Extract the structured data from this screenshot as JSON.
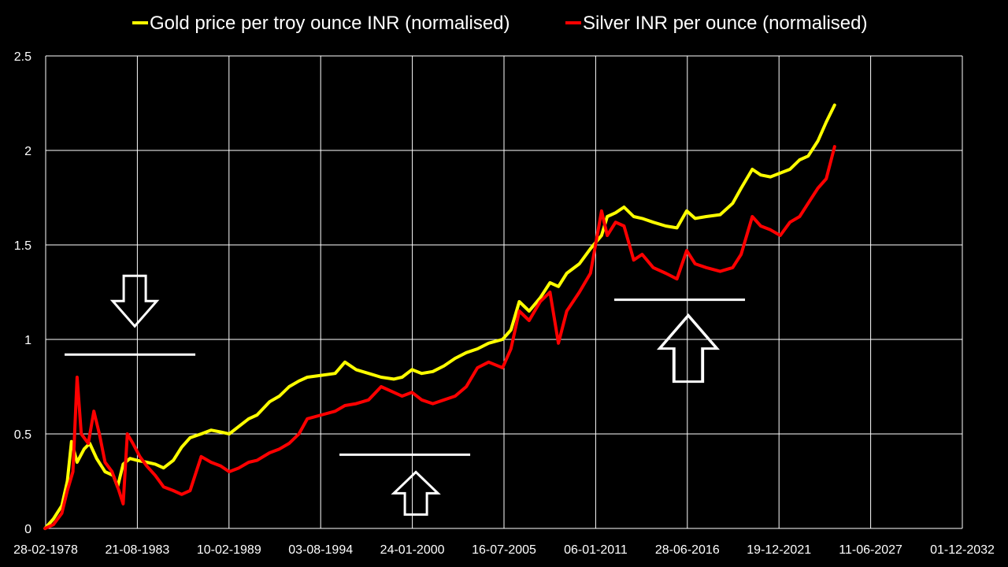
{
  "chart_data": {
    "type": "line",
    "title": "",
    "xlabel": "",
    "ylabel": "",
    "background_color": "#000000",
    "grid": true,
    "grid_color": "#ffffff",
    "legend_position": "top",
    "x_ticks": [
      "28-02-1978",
      "21-08-1983",
      "10-02-1989",
      "03-08-1994",
      "24-01-2000",
      "16-07-2005",
      "06-01-2011",
      "28-06-2016",
      "19-12-2021",
      "11-06-2027",
      "01-12-2032"
    ],
    "y_ticks": [
      "0",
      "0.5",
      "1",
      "1.5",
      "2",
      "2.5"
    ],
    "ylim": [
      0,
      2.5
    ],
    "xlim": [
      "1978-02-28",
      "2032-12-01"
    ],
    "series": [
      {
        "name": "Gold price per troy ounce INR (normalised)",
        "color": "#ffff00",
        "points": [
          [
            "1978-02",
            0.0
          ],
          [
            "1978-08",
            0.05
          ],
          [
            "1979-02",
            0.12
          ],
          [
            "1979-06",
            0.25
          ],
          [
            "1979-09",
            0.46
          ],
          [
            "1980-01",
            0.35
          ],
          [
            "1980-06",
            0.42
          ],
          [
            "1980-10",
            0.45
          ],
          [
            "1981-03",
            0.37
          ],
          [
            "1981-09",
            0.3
          ],
          [
            "1982-03",
            0.28
          ],
          [
            "1982-06",
            0.22
          ],
          [
            "1982-10",
            0.34
          ],
          [
            "1983-03",
            0.37
          ],
          [
            "1983-08",
            0.36
          ],
          [
            "1984-03",
            0.35
          ],
          [
            "1984-09",
            0.34
          ],
          [
            "1985-03",
            0.32
          ],
          [
            "1985-10",
            0.36
          ],
          [
            "1986-04",
            0.43
          ],
          [
            "1986-10",
            0.48
          ],
          [
            "1987-06",
            0.5
          ],
          [
            "1988-01",
            0.52
          ],
          [
            "1988-08",
            0.51
          ],
          [
            "1989-02",
            0.5
          ],
          [
            "1989-09",
            0.54
          ],
          [
            "1990-04",
            0.58
          ],
          [
            "1990-10",
            0.6
          ],
          [
            "1991-07",
            0.67
          ],
          [
            "1992-02",
            0.7
          ],
          [
            "1992-09",
            0.75
          ],
          [
            "1993-04",
            0.78
          ],
          [
            "1993-10",
            0.8
          ],
          [
            "1994-08",
            0.81
          ],
          [
            "1995-06",
            0.82
          ],
          [
            "1996-01",
            0.88
          ],
          [
            "1996-09",
            0.84
          ],
          [
            "1997-06",
            0.82
          ],
          [
            "1998-03",
            0.8
          ],
          [
            "1998-12",
            0.79
          ],
          [
            "1999-06",
            0.8
          ],
          [
            "2000-01",
            0.84
          ],
          [
            "2000-08",
            0.82
          ],
          [
            "2001-04",
            0.83
          ],
          [
            "2001-12",
            0.86
          ],
          [
            "2002-08",
            0.9
          ],
          [
            "2003-04",
            0.93
          ],
          [
            "2003-12",
            0.95
          ],
          [
            "2004-08",
            0.98
          ],
          [
            "2005-06",
            1.0
          ],
          [
            "2005-12",
            1.05
          ],
          [
            "2006-06",
            1.2
          ],
          [
            "2007-01",
            1.15
          ],
          [
            "2007-09",
            1.22
          ],
          [
            "2008-04",
            1.3
          ],
          [
            "2008-10",
            1.28
          ],
          [
            "2009-04",
            1.35
          ],
          [
            "2010-01",
            1.4
          ],
          [
            "2010-09",
            1.48
          ],
          [
            "2011-05",
            1.55
          ],
          [
            "2011-09",
            1.65
          ],
          [
            "2012-03",
            1.67
          ],
          [
            "2012-09",
            1.7
          ],
          [
            "2013-04",
            1.65
          ],
          [
            "2013-10",
            1.64
          ],
          [
            "2014-06",
            1.62
          ],
          [
            "2015-03",
            1.6
          ],
          [
            "2015-11",
            1.59
          ],
          [
            "2016-06",
            1.68
          ],
          [
            "2016-12",
            1.64
          ],
          [
            "2017-08",
            1.65
          ],
          [
            "2018-06",
            1.66
          ],
          [
            "2019-03",
            1.72
          ],
          [
            "2019-09",
            1.8
          ],
          [
            "2020-05",
            1.9
          ],
          [
            "2020-11",
            1.87
          ],
          [
            "2021-06",
            1.86
          ],
          [
            "2022-01",
            1.88
          ],
          [
            "2022-08",
            1.9
          ],
          [
            "2023-03",
            1.95
          ],
          [
            "2023-09",
            1.97
          ],
          [
            "2024-04",
            2.05
          ],
          [
            "2024-10",
            2.15
          ],
          [
            "2025-04",
            2.24
          ]
        ]
      },
      {
        "name": "Silver INR per ounce (normalised)",
        "color": "#ff0000",
        "points": [
          [
            "1978-02",
            0.0
          ],
          [
            "1978-08",
            0.02
          ],
          [
            "1979-02",
            0.08
          ],
          [
            "1979-06",
            0.2
          ],
          [
            "1979-10",
            0.3
          ],
          [
            "1980-01",
            0.8
          ],
          [
            "1980-04",
            0.5
          ],
          [
            "1980-09",
            0.45
          ],
          [
            "1981-01",
            0.62
          ],
          [
            "1981-05",
            0.5
          ],
          [
            "1981-09",
            0.35
          ],
          [
            "1982-02",
            0.3
          ],
          [
            "1982-07",
            0.2
          ],
          [
            "1982-10",
            0.13
          ],
          [
            "1983-01",
            0.5
          ],
          [
            "1983-05",
            0.45
          ],
          [
            "1983-10",
            0.38
          ],
          [
            "1984-03",
            0.33
          ],
          [
            "1984-09",
            0.28
          ],
          [
            "1985-03",
            0.22
          ],
          [
            "1985-10",
            0.2
          ],
          [
            "1986-04",
            0.18
          ],
          [
            "1986-10",
            0.2
          ],
          [
            "1987-06",
            0.38
          ],
          [
            "1988-01",
            0.35
          ],
          [
            "1988-08",
            0.33
          ],
          [
            "1989-02",
            0.3
          ],
          [
            "1989-09",
            0.32
          ],
          [
            "1990-04",
            0.35
          ],
          [
            "1990-10",
            0.36
          ],
          [
            "1991-07",
            0.4
          ],
          [
            "1992-02",
            0.42
          ],
          [
            "1992-09",
            0.45
          ],
          [
            "1993-04",
            0.5
          ],
          [
            "1993-10",
            0.58
          ],
          [
            "1994-08",
            0.6
          ],
          [
            "1995-06",
            0.62
          ],
          [
            "1996-01",
            0.65
          ],
          [
            "1996-09",
            0.66
          ],
          [
            "1997-06",
            0.68
          ],
          [
            "1998-03",
            0.75
          ],
          [
            "1998-12",
            0.72
          ],
          [
            "1999-06",
            0.7
          ],
          [
            "2000-01",
            0.72
          ],
          [
            "2000-08",
            0.68
          ],
          [
            "2001-04",
            0.66
          ],
          [
            "2001-12",
            0.68
          ],
          [
            "2002-08",
            0.7
          ],
          [
            "2003-04",
            0.75
          ],
          [
            "2003-12",
            0.85
          ],
          [
            "2004-08",
            0.88
          ],
          [
            "2005-06",
            0.85
          ],
          [
            "2005-12",
            0.95
          ],
          [
            "2006-06",
            1.15
          ],
          [
            "2007-01",
            1.1
          ],
          [
            "2007-09",
            1.2
          ],
          [
            "2008-04",
            1.25
          ],
          [
            "2008-10",
            0.98
          ],
          [
            "2009-04",
            1.15
          ],
          [
            "2010-01",
            1.25
          ],
          [
            "2010-09",
            1.35
          ],
          [
            "2011-05",
            1.68
          ],
          [
            "2011-09",
            1.55
          ],
          [
            "2012-03",
            1.62
          ],
          [
            "2012-09",
            1.6
          ],
          [
            "2013-04",
            1.42
          ],
          [
            "2013-10",
            1.45
          ],
          [
            "2014-06",
            1.38
          ],
          [
            "2015-03",
            1.35
          ],
          [
            "2015-11",
            1.32
          ],
          [
            "2016-06",
            1.47
          ],
          [
            "2016-12",
            1.4
          ],
          [
            "2017-08",
            1.38
          ],
          [
            "2018-06",
            1.36
          ],
          [
            "2019-03",
            1.38
          ],
          [
            "2019-09",
            1.45
          ],
          [
            "2020-05",
            1.65
          ],
          [
            "2020-11",
            1.6
          ],
          [
            "2021-06",
            1.58
          ],
          [
            "2022-01",
            1.55
          ],
          [
            "2022-08",
            1.62
          ],
          [
            "2023-03",
            1.65
          ],
          [
            "2023-09",
            1.72
          ],
          [
            "2024-04",
            1.8
          ],
          [
            "2024-10",
            1.85
          ],
          [
            "2025-04",
            2.02
          ]
        ]
      }
    ],
    "annotations": [
      {
        "type": "down-arrow",
        "near_x": "1983-08",
        "level_y": 0.92
      },
      {
        "type": "up-arrow",
        "near_x": "2000-01",
        "level_y": 0.39
      },
      {
        "type": "up-arrow",
        "near_x": "2016-06",
        "level_y": 1.21
      }
    ]
  }
}
